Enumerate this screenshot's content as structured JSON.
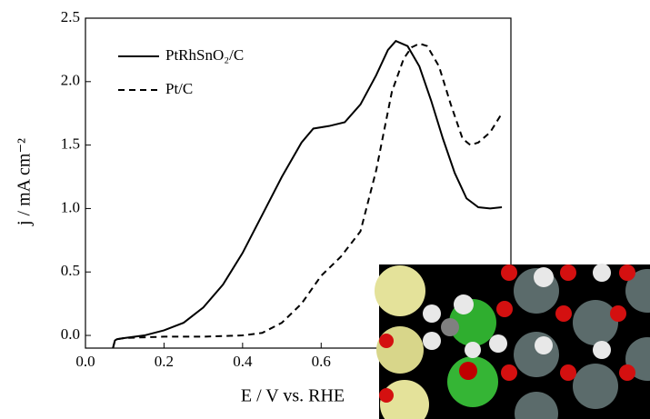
{
  "chart_data": {
    "type": "line",
    "x_label": "E / V vs. RHE",
    "y_label": "j / mA cm⁻²",
    "xlim": [
      0,
      1.083
    ],
    "ylim": [
      -0.1,
      2.5
    ],
    "xticks": [
      {
        "value": 0,
        "label": "0.0"
      },
      {
        "value": 0.2,
        "label": "0.2"
      },
      {
        "value": 0.4,
        "label": "0.4"
      },
      {
        "value": 0.6,
        "label": "0.6"
      }
    ],
    "yticks": [
      {
        "value": 0,
        "label": "0.0"
      },
      {
        "value": 0.5,
        "label": "0.5"
      },
      {
        "value": 1,
        "label": "1.0"
      },
      {
        "value": 1.5,
        "label": "1.5"
      },
      {
        "value": 2,
        "label": "2.0"
      },
      {
        "value": 2.5,
        "label": "2.5"
      }
    ],
    "legend": "upper left",
    "series": [
      {
        "name": "PtRhSnO₂/C",
        "color": "#000000",
        "dash": "solid",
        "x": [
          0.07,
          0.075,
          0.08,
          0.1,
          0.15,
          0.2,
          0.25,
          0.3,
          0.35,
          0.4,
          0.45,
          0.5,
          0.55,
          0.58,
          0.62,
          0.66,
          0.7,
          0.74,
          0.77,
          0.79,
          0.82,
          0.85,
          0.88,
          0.91,
          0.94,
          0.97,
          1.0,
          1.03,
          1.06
        ],
        "values": [
          -0.1,
          -0.04,
          -0.03,
          -0.02,
          0,
          0.04,
          0.1,
          0.22,
          0.4,
          0.65,
          0.95,
          1.25,
          1.52,
          1.63,
          1.65,
          1.68,
          1.82,
          2.05,
          2.25,
          2.32,
          2.28,
          2.12,
          1.85,
          1.55,
          1.28,
          1.08,
          1.01,
          1.0,
          1.01
        ]
      },
      {
        "name": "Pt/C",
        "color": "#000000",
        "dash": "dashed",
        "x": [
          0.07,
          0.075,
          0.08,
          0.1,
          0.2,
          0.3,
          0.4,
          0.45,
          0.5,
          0.55,
          0.6,
          0.65,
          0.7,
          0.74,
          0.78,
          0.81,
          0.83,
          0.85,
          0.87,
          0.9,
          0.93,
          0.96,
          0.98,
          1.0,
          1.03,
          1.06
        ],
        "values": [
          -0.1,
          -0.04,
          -0.03,
          -0.02,
          -0.01,
          -0.01,
          0.0,
          0.02,
          0.1,
          0.25,
          0.47,
          0.62,
          0.82,
          1.3,
          1.92,
          2.18,
          2.27,
          2.3,
          2.28,
          2.12,
          1.82,
          1.55,
          1.5,
          1.52,
          1.6,
          1.75
        ]
      }
    ]
  }
}
